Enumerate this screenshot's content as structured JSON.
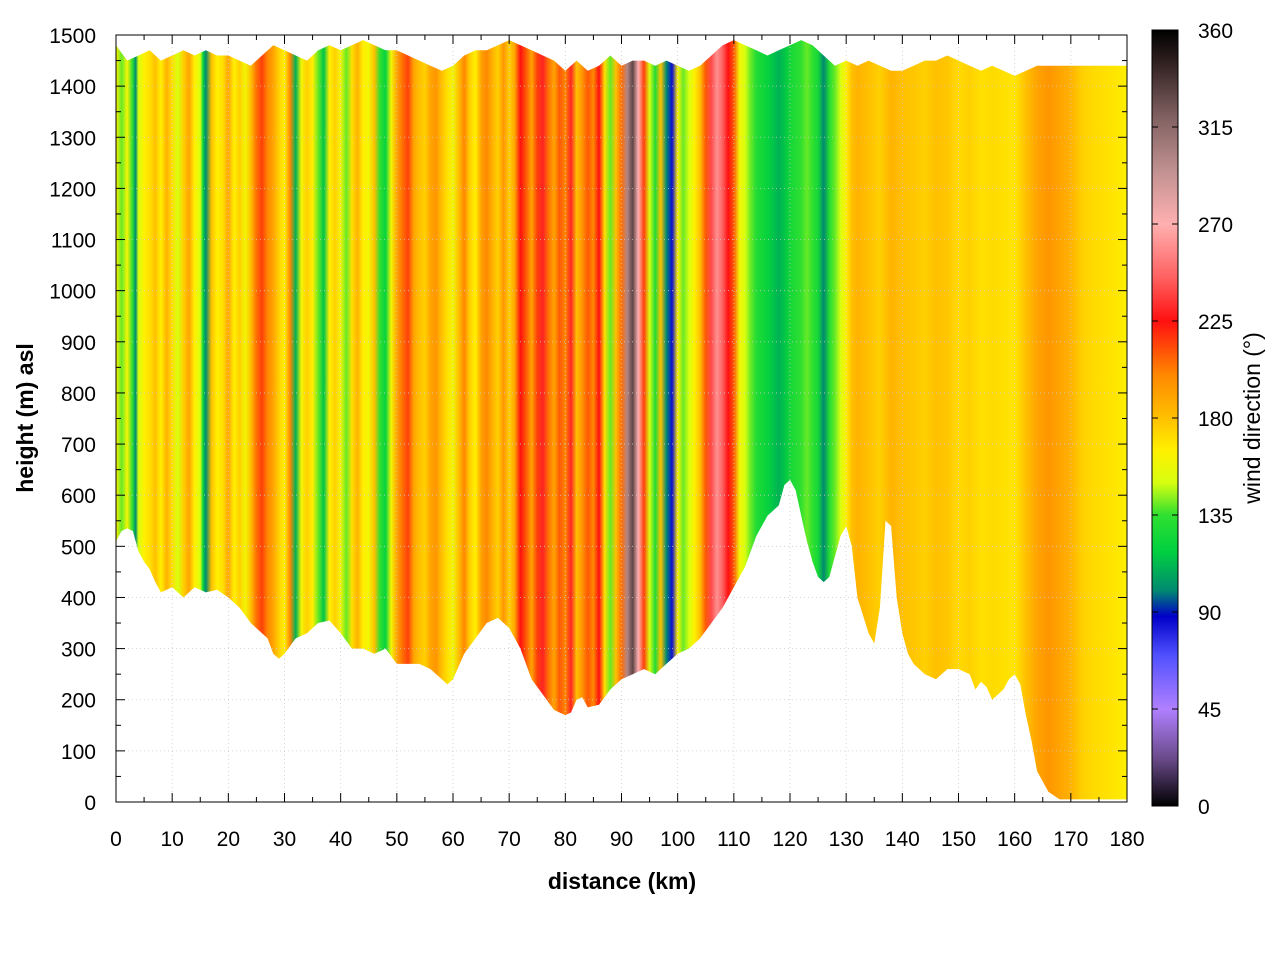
{
  "chart_data": {
    "type": "heatmap",
    "xlabel": "distance (km)",
    "ylabel": "height (m) asl",
    "colorbar_label": "wind direction (°)",
    "xlim": [
      0,
      180
    ],
    "ylim": [
      0,
      1500
    ],
    "zlim": [
      0,
      360
    ],
    "x_ticks": [
      0,
      10,
      20,
      30,
      40,
      50,
      60,
      70,
      80,
      90,
      100,
      110,
      120,
      130,
      140,
      150,
      160,
      170,
      180
    ],
    "y_ticks": [
      0,
      100,
      200,
      300,
      400,
      500,
      600,
      700,
      800,
      900,
      1000,
      1100,
      1200,
      1300,
      1400,
      1500
    ],
    "colorbar_ticks": [
      0,
      45,
      90,
      135,
      180,
      225,
      270,
      315,
      360
    ],
    "grid": true,
    "colormap": [
      {
        "v": 0,
        "color": "#000000"
      },
      {
        "v": 22,
        "color": "#6a4a8a"
      },
      {
        "v": 45,
        "color": "#b080ff"
      },
      {
        "v": 70,
        "color": "#5050ff"
      },
      {
        "v": 88,
        "color": "#0000c8"
      },
      {
        "v": 100,
        "color": "#008a70"
      },
      {
        "v": 118,
        "color": "#00d040"
      },
      {
        "v": 135,
        "color": "#30e030"
      },
      {
        "v": 150,
        "color": "#d8ff10"
      },
      {
        "v": 165,
        "color": "#fff000"
      },
      {
        "v": 180,
        "color": "#ffc000"
      },
      {
        "v": 200,
        "color": "#ff8800"
      },
      {
        "v": 225,
        "color": "#ff1010"
      },
      {
        "v": 245,
        "color": "#ff6060"
      },
      {
        "v": 270,
        "color": "#ffb0b0"
      },
      {
        "v": 295,
        "color": "#c09090"
      },
      {
        "v": 320,
        "color": "#806060"
      },
      {
        "v": 345,
        "color": "#302020"
      },
      {
        "v": 360,
        "color": "#000000"
      }
    ],
    "terrain_bottom": [
      [
        0,
        510
      ],
      [
        1,
        530
      ],
      [
        2,
        535
      ],
      [
        3,
        530
      ],
      [
        4,
        490
      ],
      [
        5,
        470
      ],
      [
        6,
        455
      ],
      [
        7,
        430
      ],
      [
        8,
        410
      ],
      [
        10,
        420
      ],
      [
        12,
        400
      ],
      [
        14,
        420
      ],
      [
        16,
        410
      ],
      [
        18,
        415
      ],
      [
        20,
        400
      ],
      [
        22,
        380
      ],
      [
        24,
        350
      ],
      [
        26,
        330
      ],
      [
        27,
        320
      ],
      [
        28,
        290
      ],
      [
        29,
        280
      ],
      [
        30,
        290
      ],
      [
        32,
        320
      ],
      [
        34,
        330
      ],
      [
        36,
        350
      ],
      [
        38,
        355
      ],
      [
        40,
        330
      ],
      [
        42,
        300
      ],
      [
        44,
        300
      ],
      [
        46,
        290
      ],
      [
        48,
        300
      ],
      [
        50,
        270
      ],
      [
        52,
        270
      ],
      [
        54,
        270
      ],
      [
        56,
        260
      ],
      [
        58,
        240
      ],
      [
        59,
        230
      ],
      [
        60,
        240
      ],
      [
        62,
        290
      ],
      [
        64,
        320
      ],
      [
        66,
        350
      ],
      [
        68,
        360
      ],
      [
        70,
        340
      ],
      [
        72,
        300
      ],
      [
        74,
        240
      ],
      [
        76,
        210
      ],
      [
        78,
        180
      ],
      [
        80,
        170
      ],
      [
        81,
        175
      ],
      [
        82,
        200
      ],
      [
        83,
        205
      ],
      [
        84,
        185
      ],
      [
        86,
        190
      ],
      [
        88,
        220
      ],
      [
        90,
        240
      ],
      [
        92,
        250
      ],
      [
        94,
        260
      ],
      [
        96,
        250
      ],
      [
        98,
        270
      ],
      [
        100,
        290
      ],
      [
        102,
        300
      ],
      [
        104,
        320
      ],
      [
        106,
        350
      ],
      [
        108,
        380
      ],
      [
        110,
        420
      ],
      [
        112,
        460
      ],
      [
        114,
        520
      ],
      [
        116,
        560
      ],
      [
        118,
        580
      ],
      [
        119,
        620
      ],
      [
        120,
        630
      ],
      [
        121,
        610
      ],
      [
        122,
        560
      ],
      [
        123,
        510
      ],
      [
        124,
        470
      ],
      [
        125,
        440
      ],
      [
        126,
        430
      ],
      [
        127,
        440
      ],
      [
        128,
        480
      ],
      [
        129,
        520
      ],
      [
        130,
        540
      ],
      [
        131,
        500
      ],
      [
        132,
        400
      ],
      [
        134,
        330
      ],
      [
        135,
        310
      ],
      [
        136,
        380
      ],
      [
        137,
        550
      ],
      [
        138,
        540
      ],
      [
        139,
        400
      ],
      [
        140,
        330
      ],
      [
        141,
        290
      ],
      [
        142,
        270
      ],
      [
        144,
        250
      ],
      [
        146,
        240
      ],
      [
        148,
        260
      ],
      [
        150,
        260
      ],
      [
        152,
        250
      ],
      [
        153,
        220
      ],
      [
        154,
        235
      ],
      [
        155,
        225
      ],
      [
        156,
        200
      ],
      [
        157,
        210
      ],
      [
        158,
        220
      ],
      [
        159,
        240
      ],
      [
        160,
        250
      ],
      [
        161,
        230
      ],
      [
        162,
        170
      ],
      [
        163,
        120
      ],
      [
        164,
        60
      ],
      [
        166,
        20
      ],
      [
        168,
        5
      ],
      [
        180,
        5
      ]
    ],
    "terrain_top": [
      [
        0,
        1480
      ],
      [
        2,
        1450
      ],
      [
        4,
        1460
      ],
      [
        6,
        1470
      ],
      [
        8,
        1450
      ],
      [
        10,
        1460
      ],
      [
        12,
        1470
      ],
      [
        14,
        1460
      ],
      [
        16,
        1470
      ],
      [
        18,
        1460
      ],
      [
        20,
        1460
      ],
      [
        22,
        1450
      ],
      [
        24,
        1440
      ],
      [
        26,
        1460
      ],
      [
        28,
        1480
      ],
      [
        30,
        1470
      ],
      [
        32,
        1460
      ],
      [
        34,
        1450
      ],
      [
        36,
        1470
      ],
      [
        38,
        1480
      ],
      [
        40,
        1470
      ],
      [
        42,
        1480
      ],
      [
        44,
        1490
      ],
      [
        46,
        1480
      ],
      [
        48,
        1470
      ],
      [
        50,
        1470
      ],
      [
        52,
        1460
      ],
      [
        54,
        1450
      ],
      [
        56,
        1440
      ],
      [
        58,
        1430
      ],
      [
        60,
        1440
      ],
      [
        62,
        1460
      ],
      [
        64,
        1470
      ],
      [
        66,
        1470
      ],
      [
        68,
        1480
      ],
      [
        70,
        1490
      ],
      [
        72,
        1480
      ],
      [
        74,
        1470
      ],
      [
        76,
        1460
      ],
      [
        78,
        1450
      ],
      [
        80,
        1430
      ],
      [
        82,
        1450
      ],
      [
        84,
        1430
      ],
      [
        86,
        1440
      ],
      [
        88,
        1460
      ],
      [
        90,
        1440
      ],
      [
        92,
        1450
      ],
      [
        94,
        1450
      ],
      [
        96,
        1440
      ],
      [
        98,
        1450
      ],
      [
        100,
        1440
      ],
      [
        102,
        1430
      ],
      [
        104,
        1440
      ],
      [
        106,
        1460
      ],
      [
        108,
        1480
      ],
      [
        110,
        1490
      ],
      [
        112,
        1480
      ],
      [
        114,
        1470
      ],
      [
        116,
        1460
      ],
      [
        118,
        1470
      ],
      [
        120,
        1480
      ],
      [
        122,
        1490
      ],
      [
        124,
        1480
      ],
      [
        126,
        1460
      ],
      [
        128,
        1440
      ],
      [
        130,
        1450
      ],
      [
        132,
        1440
      ],
      [
        134,
        1450
      ],
      [
        136,
        1440
      ],
      [
        138,
        1430
      ],
      [
        140,
        1430
      ],
      [
        142,
        1440
      ],
      [
        144,
        1450
      ],
      [
        146,
        1450
      ],
      [
        148,
        1460
      ],
      [
        150,
        1450
      ],
      [
        152,
        1440
      ],
      [
        154,
        1430
      ],
      [
        156,
        1440
      ],
      [
        158,
        1430
      ],
      [
        160,
        1420
      ],
      [
        162,
        1430
      ],
      [
        164,
        1440
      ],
      [
        180,
        1440
      ]
    ],
    "wind_direction_columns": [
      [
        0,
        165
      ],
      [
        1,
        140
      ],
      [
        2,
        160
      ],
      [
        3,
        130
      ],
      [
        3.5,
        100
      ],
      [
        4,
        150
      ],
      [
        5,
        165
      ],
      [
        6,
        170
      ],
      [
        7,
        180
      ],
      [
        8,
        165
      ],
      [
        9,
        185
      ],
      [
        10,
        170
      ],
      [
        11,
        150
      ],
      [
        12,
        175
      ],
      [
        13,
        190
      ],
      [
        14,
        165
      ],
      [
        15,
        150
      ],
      [
        15.5,
        120
      ],
      [
        16,
        100
      ],
      [
        17,
        180
      ],
      [
        18,
        165
      ],
      [
        19,
        170
      ],
      [
        20,
        190
      ],
      [
        21,
        165
      ],
      [
        22,
        175
      ],
      [
        23,
        160
      ],
      [
        24,
        180
      ],
      [
        25,
        205
      ],
      [
        26,
        215
      ],
      [
        27,
        200
      ],
      [
        28,
        190
      ],
      [
        29,
        175
      ],
      [
        30,
        165
      ],
      [
        31,
        200
      ],
      [
        32,
        110
      ],
      [
        33,
        160
      ],
      [
        34,
        175
      ],
      [
        35,
        165
      ],
      [
        36,
        140
      ],
      [
        37,
        115
      ],
      [
        38,
        165
      ],
      [
        39,
        175
      ],
      [
        40,
        160
      ],
      [
        41,
        140
      ],
      [
        42,
        170
      ],
      [
        43,
        185
      ],
      [
        44,
        165
      ],
      [
        45,
        160
      ],
      [
        46,
        180
      ],
      [
        47,
        135
      ],
      [
        48,
        120
      ],
      [
        49,
        160
      ],
      [
        50,
        190
      ],
      [
        51,
        205
      ],
      [
        52,
        215
      ],
      [
        53,
        190
      ],
      [
        54,
        180
      ],
      [
        55,
        175
      ],
      [
        56,
        190
      ],
      [
        57,
        195
      ],
      [
        58,
        180
      ],
      [
        59,
        170
      ],
      [
        60,
        160
      ],
      [
        61,
        180
      ],
      [
        62,
        200
      ],
      [
        63,
        175
      ],
      [
        64,
        165
      ],
      [
        65,
        190
      ],
      [
        66,
        200
      ],
      [
        67,
        185
      ],
      [
        68,
        175
      ],
      [
        69,
        195
      ],
      [
        70,
        175
      ],
      [
        71,
        190
      ],
      [
        72,
        225
      ],
      [
        73,
        210
      ],
      [
        74,
        190
      ],
      [
        75,
        215
      ],
      [
        76,
        230
      ],
      [
        77,
        205
      ],
      [
        78,
        190
      ],
      [
        79,
        210
      ],
      [
        80,
        200
      ],
      [
        81,
        230
      ],
      [
        82,
        180
      ],
      [
        83,
        195
      ],
      [
        84,
        210
      ],
      [
        85,
        200
      ],
      [
        86,
        225
      ],
      [
        87,
        170
      ],
      [
        88,
        140
      ],
      [
        89,
        180
      ],
      [
        90,
        205
      ],
      [
        91,
        300
      ],
      [
        92,
        330
      ],
      [
        93,
        270
      ],
      [
        94,
        215
      ],
      [
        95,
        150
      ],
      [
        96,
        130
      ],
      [
        97,
        180
      ],
      [
        98,
        100
      ],
      [
        99,
        85
      ],
      [
        100,
        165
      ],
      [
        101,
        140
      ],
      [
        102,
        150
      ],
      [
        103,
        165
      ],
      [
        104,
        180
      ],
      [
        105,
        210
      ],
      [
        106,
        240
      ],
      [
        107,
        260
      ],
      [
        108,
        245
      ],
      [
        109,
        225
      ],
      [
        110,
        210
      ],
      [
        111,
        160
      ],
      [
        112,
        150
      ],
      [
        113,
        140
      ],
      [
        114,
        130
      ],
      [
        115,
        125
      ],
      [
        116,
        120
      ],
      [
        117,
        115
      ],
      [
        118,
        110
      ],
      [
        119,
        115
      ],
      [
        120,
        125
      ],
      [
        121,
        130
      ],
      [
        122,
        135
      ],
      [
        123,
        140
      ],
      [
        124,
        135
      ],
      [
        125,
        125
      ],
      [
        126,
        100
      ],
      [
        127,
        130
      ],
      [
        128,
        140
      ],
      [
        129,
        150
      ],
      [
        130,
        165
      ],
      [
        131,
        180
      ],
      [
        132,
        185
      ],
      [
        134,
        180
      ],
      [
        136,
        175
      ],
      [
        138,
        185
      ],
      [
        140,
        180
      ],
      [
        142,
        178
      ],
      [
        144,
        175
      ],
      [
        146,
        180
      ],
      [
        148,
        178
      ],
      [
        150,
        172
      ],
      [
        152,
        175
      ],
      [
        154,
        170
      ],
      [
        156,
        172
      ],
      [
        158,
        170
      ],
      [
        160,
        168
      ],
      [
        162,
        180
      ],
      [
        164,
        190
      ],
      [
        166,
        195
      ],
      [
        168,
        190
      ],
      [
        170,
        185
      ],
      [
        172,
        175
      ],
      [
        174,
        172
      ],
      [
        176,
        170
      ],
      [
        178,
        168
      ],
      [
        180,
        165
      ]
    ]
  }
}
